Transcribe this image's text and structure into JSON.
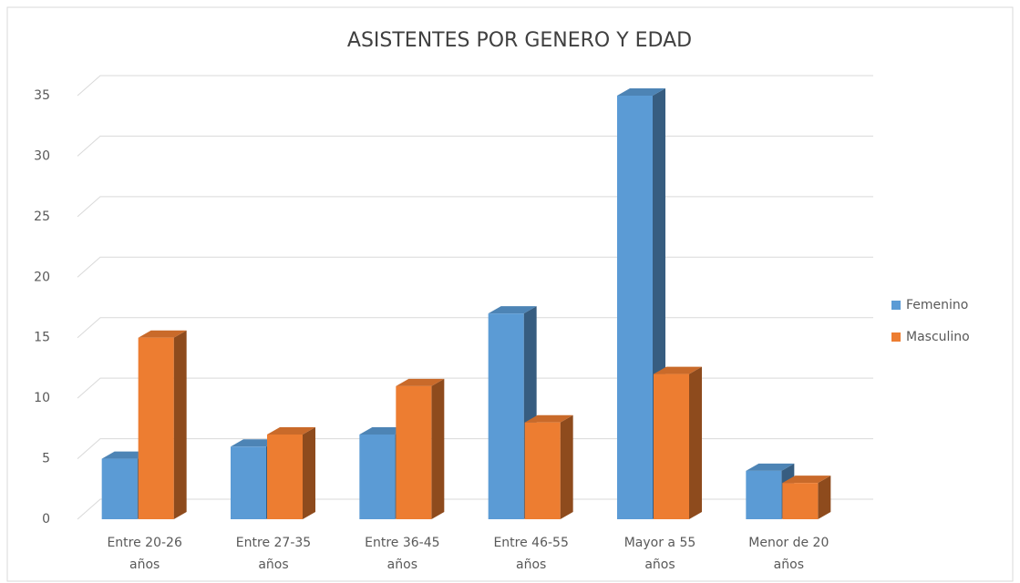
{
  "chart_data": {
    "type": "bar3d",
    "title": "ASISTENTES POR GENERO Y EDAD",
    "categories": [
      "Entre 20-26 años",
      "Entre 27-35 años",
      "Entre 36-45 años",
      "Entre 46-55 años",
      "Mayor a 55 años",
      "Menor de 20 años"
    ],
    "series": [
      {
        "name": "Femenino",
        "color": "#5b9bd5",
        "values": [
          5,
          6,
          7,
          17,
          35,
          4
        ]
      },
      {
        "name": "Masculino",
        "color": "#ed7d31",
        "values": [
          15,
          7,
          11,
          8,
          12,
          3
        ]
      }
    ],
    "ylim": [
      0,
      35
    ],
    "yticks": [
      0,
      5,
      10,
      15,
      20,
      25,
      30,
      35
    ],
    "grid": true,
    "legend": "right"
  }
}
